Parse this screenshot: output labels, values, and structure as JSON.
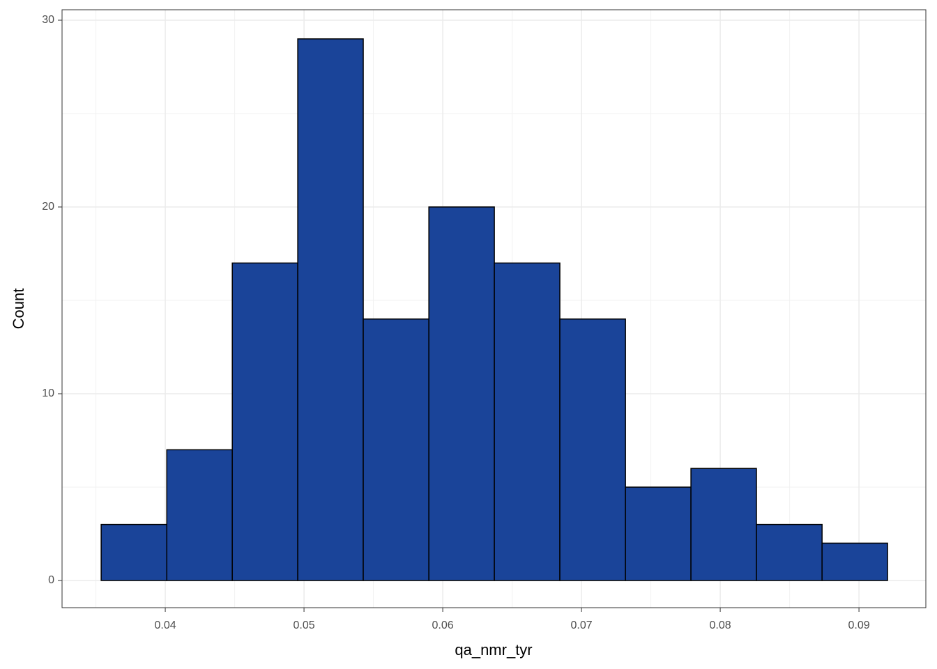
{
  "chart_data": {
    "type": "histogram",
    "x_label": "qa_nmr_tyr",
    "y_label": "Count",
    "bins": [
      0.03538,
      0.04011,
      0.04483,
      0.04955,
      0.05427,
      0.059,
      0.06372,
      0.06844,
      0.07317,
      0.07789,
      0.08261,
      0.08734,
      0.09206
    ],
    "values": [
      3,
      7,
      17,
      29,
      14,
      20,
      17,
      14,
      5,
      6,
      3,
      2
    ],
    "color": "#1a4499",
    "edge_color": "#000000",
    "xlim": [
      0.03256,
      0.09482
    ],
    "xticks": [
      0.04,
      0.05,
      0.06,
      0.07,
      0.08,
      0.09
    ],
    "ylim": [
      -1.455,
      30.56
    ],
    "yticks": [
      0,
      10,
      20,
      30
    ],
    "grid": true
  }
}
